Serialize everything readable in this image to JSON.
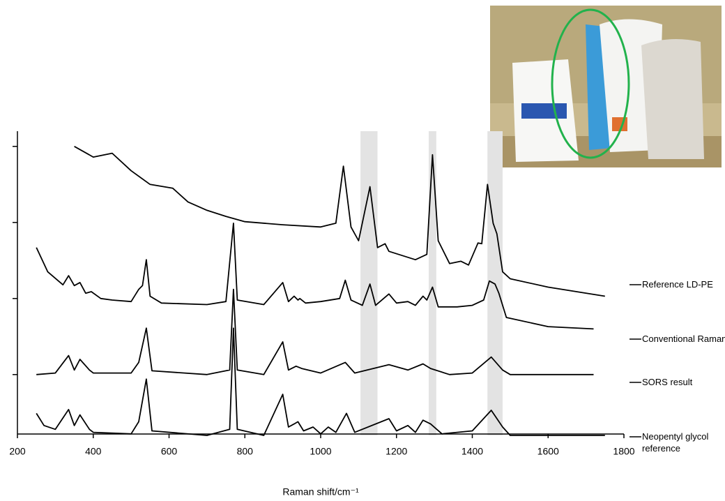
{
  "chart_data": {
    "type": "line",
    "xlabel": "Raman shift/cm⁻¹",
    "xlim": [
      200,
      1800
    ],
    "xticks": [
      200,
      400,
      600,
      800,
      1000,
      1200,
      1400,
      1600,
      1800
    ],
    "ylim": [
      0.2,
      4.2
    ],
    "yticks": [
      1,
      2,
      3,
      4
    ],
    "ytick_labels": false,
    "shaded_regions": [
      [
        1105,
        1150
      ],
      [
        1285,
        1305
      ],
      [
        1440,
        1480
      ]
    ],
    "shade_color": "#e3e3e3",
    "series": [
      {
        "name": "Reference LD-PE",
        "color": "#000000",
        "x": [
          350,
          400,
          450,
          500,
          550,
          610,
          650,
          700,
          750,
          800,
          900,
          1000,
          1040,
          1060,
          1080,
          1100,
          1130,
          1150,
          1170,
          1180,
          1250,
          1280,
          1295,
          1310,
          1340,
          1370,
          1390,
          1415,
          1425,
          1440,
          1455,
          1465,
          1480,
          1500,
          1600,
          1750
        ],
        "values": [
          4.0,
          3.86,
          3.91,
          3.68,
          3.5,
          3.45,
          3.27,
          3.16,
          3.08,
          3.01,
          2.97,
          2.94,
          2.99,
          3.74,
          2.94,
          2.76,
          3.47,
          2.67,
          2.72,
          2.62,
          2.51,
          2.58,
          3.89,
          2.76,
          2.46,
          2.49,
          2.44,
          2.73,
          2.72,
          3.5,
          2.99,
          2.85,
          2.35,
          2.26,
          2.15,
          2.03
        ]
      },
      {
        "name": "Conventional Raman",
        "color": "#000000",
        "x": [
          250,
          280,
          320,
          335,
          350,
          365,
          380,
          395,
          420,
          450,
          500,
          520,
          530,
          540,
          550,
          580,
          700,
          750,
          770,
          780,
          850,
          900,
          915,
          930,
          940,
          945,
          960,
          1000,
          1050,
          1065,
          1080,
          1110,
          1130,
          1145,
          1180,
          1200,
          1230,
          1250,
          1270,
          1280,
          1295,
          1310,
          1360,
          1400,
          1430,
          1445,
          1460,
          1470,
          1490,
          1600,
          1720
        ],
        "values": [
          2.67,
          2.35,
          2.18,
          2.3,
          2.17,
          2.21,
          2.07,
          2.09,
          2.0,
          1.98,
          1.96,
          2.12,
          2.17,
          2.51,
          2.03,
          1.94,
          1.92,
          1.96,
          2.99,
          1.98,
          1.92,
          2.21,
          1.96,
          2.03,
          1.98,
          2.0,
          1.94,
          1.96,
          2.0,
          2.24,
          1.98,
          1.91,
          2.19,
          1.91,
          2.06,
          1.94,
          1.96,
          1.91,
          2.03,
          1.98,
          2.15,
          1.89,
          1.89,
          1.91,
          1.98,
          2.23,
          2.19,
          2.07,
          1.75,
          1.63,
          1.6
        ]
      },
      {
        "name": "SORS result",
        "color": "#000000",
        "x": [
          250,
          300,
          335,
          350,
          365,
          390,
          400,
          500,
          520,
          540,
          555,
          700,
          760,
          770,
          780,
          850,
          900,
          915,
          935,
          950,
          1000,
          1065,
          1090,
          1180,
          1230,
          1270,
          1290,
          1340,
          1400,
          1450,
          1480,
          1500,
          1720
        ],
        "values": [
          1.0,
          1.02,
          1.25,
          1.06,
          1.2,
          1.06,
          1.02,
          1.02,
          1.16,
          1.61,
          1.05,
          1.0,
          1.06,
          2.12,
          1.06,
          1.0,
          1.43,
          1.06,
          1.11,
          1.08,
          1.02,
          1.16,
          1.02,
          1.13,
          1.06,
          1.14,
          1.08,
          1.0,
          1.02,
          1.23,
          1.06,
          1.0,
          1.0
        ]
      },
      {
        "name": "Neopentyl glycol reference",
        "color": "#000000",
        "x": [
          250,
          270,
          300,
          335,
          350,
          365,
          390,
          400,
          500,
          520,
          540,
          555,
          700,
          760,
          770,
          780,
          850,
          900,
          915,
          930,
          940,
          955,
          980,
          1000,
          1020,
          1040,
          1068,
          1090,
          1180,
          1200,
          1230,
          1250,
          1270,
          1290,
          1320,
          1360,
          1400,
          1450,
          1480,
          1500,
          1750
        ],
        "values": [
          0.49,
          0.33,
          0.28,
          0.54,
          0.33,
          0.47,
          0.28,
          0.24,
          0.22,
          0.38,
          0.94,
          0.26,
          0.2,
          0.28,
          1.61,
          0.28,
          0.2,
          0.74,
          0.31,
          0.35,
          0.38,
          0.26,
          0.31,
          0.22,
          0.31,
          0.24,
          0.49,
          0.24,
          0.42,
          0.26,
          0.33,
          0.24,
          0.4,
          0.35,
          0.22,
          0.24,
          0.26,
          0.53,
          0.31,
          0.2,
          0.2
        ]
      }
    ]
  }
}
